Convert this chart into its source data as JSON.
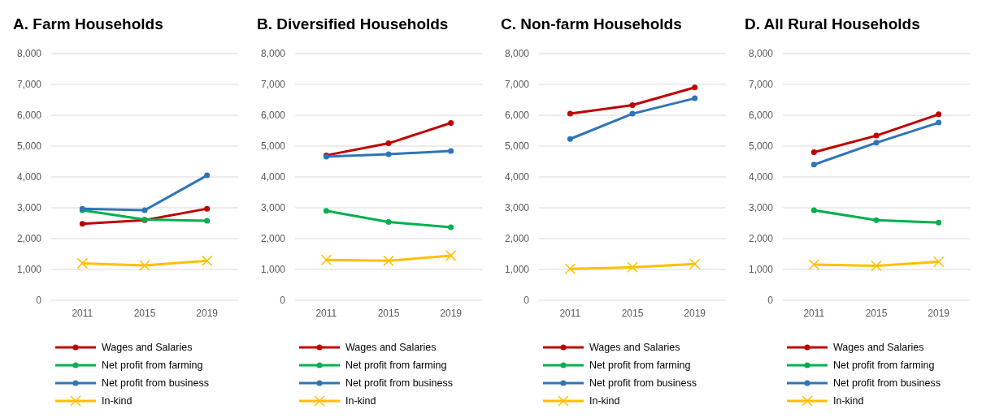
{
  "chart_data": [
    {
      "type": "line",
      "title": "A. Farm Households",
      "categories": [
        "2011",
        "2015",
        "2019"
      ],
      "ylim": [
        0,
        8000
      ],
      "yticks": [
        {
          "value": 0,
          "label": "0"
        },
        {
          "value": 1000,
          "label": "1,000"
        },
        {
          "value": 2000,
          "label": "2,000"
        },
        {
          "value": 3000,
          "label": "3,000"
        },
        {
          "value": 4000,
          "label": "4,000"
        },
        {
          "value": 5000,
          "label": "5,000"
        },
        {
          "value": 6000,
          "label": "6,000"
        },
        {
          "value": 7000,
          "label": "7,000"
        },
        {
          "value": 8000,
          "label": "8,000"
        }
      ],
      "grid": "y",
      "legend": "bottom",
      "series": [
        {
          "name": "Wages and Salaries",
          "color": "#c00000",
          "marker": "circle",
          "values": [
            2480,
            2600,
            2970
          ]
        },
        {
          "name": "Net profit from farming",
          "color": "#00b050",
          "marker": "circle",
          "values": [
            2920,
            2620,
            2580
          ]
        },
        {
          "name": "Net profit from business",
          "color": "#2e75b6",
          "marker": "circle",
          "values": [
            2970,
            2920,
            4050
          ]
        },
        {
          "name": "In-kind",
          "color": "#ffc000",
          "marker": "cross",
          "values": [
            1200,
            1130,
            1280
          ]
        }
      ]
    },
    {
      "type": "line",
      "title": "B. Diversified Households",
      "categories": [
        "2011",
        "2015",
        "2019"
      ],
      "ylim": [
        0,
        8000
      ],
      "yticks": [
        {
          "value": 0,
          "label": "0"
        },
        {
          "value": 1000,
          "label": "1,000"
        },
        {
          "value": 2000,
          "label": "2,000"
        },
        {
          "value": 3000,
          "label": "3,000"
        },
        {
          "value": 4000,
          "label": "4,000"
        },
        {
          "value": 5000,
          "label": "5,000"
        },
        {
          "value": 6000,
          "label": "6,000"
        },
        {
          "value": 7000,
          "label": "7,000"
        },
        {
          "value": 8000,
          "label": "8,000"
        }
      ],
      "grid": "y",
      "legend": "bottom",
      "series": [
        {
          "name": "Wages and Salaries",
          "color": "#c00000",
          "marker": "circle",
          "values": [
            4700,
            5090,
            5750
          ]
        },
        {
          "name": "Net profit from farming",
          "color": "#00b050",
          "marker": "circle",
          "values": [
            2900,
            2540,
            2370
          ]
        },
        {
          "name": "Net profit from business",
          "color": "#2e75b6",
          "marker": "circle",
          "values": [
            4660,
            4740,
            4840
          ]
        },
        {
          "name": "In-kind",
          "color": "#ffc000",
          "marker": "cross",
          "values": [
            1310,
            1280,
            1450
          ]
        }
      ]
    },
    {
      "type": "line",
      "title": "C. Non-farm Households",
      "categories": [
        "2011",
        "2015",
        "2019"
      ],
      "ylim": [
        0,
        8000
      ],
      "yticks": [
        {
          "value": 0,
          "label": "0"
        },
        {
          "value": 1000,
          "label": "1,000"
        },
        {
          "value": 2000,
          "label": "2,000"
        },
        {
          "value": 3000,
          "label": "3,000"
        },
        {
          "value": 4000,
          "label": "4,000"
        },
        {
          "value": 5000,
          "label": "5,000"
        },
        {
          "value": 6000,
          "label": "6,000"
        },
        {
          "value": 7000,
          "label": "7,000"
        },
        {
          "value": 8000,
          "label": "8,000"
        }
      ],
      "grid": "y",
      "legend": "bottom",
      "series": [
        {
          "name": "Wages and Salaries",
          "color": "#c00000",
          "marker": "circle",
          "values": [
            6050,
            6330,
            6900
          ]
        },
        {
          "name": "Net profit from farming",
          "color": "#00b050",
          "marker": "circle",
          "values": [
            null,
            null,
            null
          ]
        },
        {
          "name": "Net profit from business",
          "color": "#2e75b6",
          "marker": "circle",
          "values": [
            5230,
            6050,
            6550
          ]
        },
        {
          "name": "In-kind",
          "color": "#ffc000",
          "marker": "cross",
          "values": [
            1020,
            1070,
            1180
          ]
        }
      ]
    },
    {
      "type": "line",
      "title": "D. All Rural Households",
      "categories": [
        "2011",
        "2015",
        "2019"
      ],
      "ylim": [
        0,
        8000
      ],
      "yticks": [
        {
          "value": 0,
          "label": "0"
        },
        {
          "value": 1000,
          "label": "1,000"
        },
        {
          "value": 2000,
          "label": "2,000"
        },
        {
          "value": 3000,
          "label": "3,000"
        },
        {
          "value": 4000,
          "label": "4,000"
        },
        {
          "value": 5000,
          "label": "5,000"
        },
        {
          "value": 6000,
          "label": "6,000"
        },
        {
          "value": 7000,
          "label": "7,000"
        },
        {
          "value": 8000,
          "label": "8,000"
        }
      ],
      "grid": "y",
      "legend": "bottom",
      "series": [
        {
          "name": "Wages and Salaries",
          "color": "#c00000",
          "marker": "circle",
          "values": [
            4800,
            5340,
            6030
          ]
        },
        {
          "name": "Net profit from farming",
          "color": "#00b050",
          "marker": "circle",
          "values": [
            2920,
            2600,
            2520
          ]
        },
        {
          "name": "Net profit from business",
          "color": "#2e75b6",
          "marker": "circle",
          "values": [
            4400,
            5110,
            5760
          ]
        },
        {
          "name": "In-kind",
          "color": "#ffc000",
          "marker": "cross",
          "values": [
            1160,
            1120,
            1250
          ]
        }
      ]
    }
  ]
}
